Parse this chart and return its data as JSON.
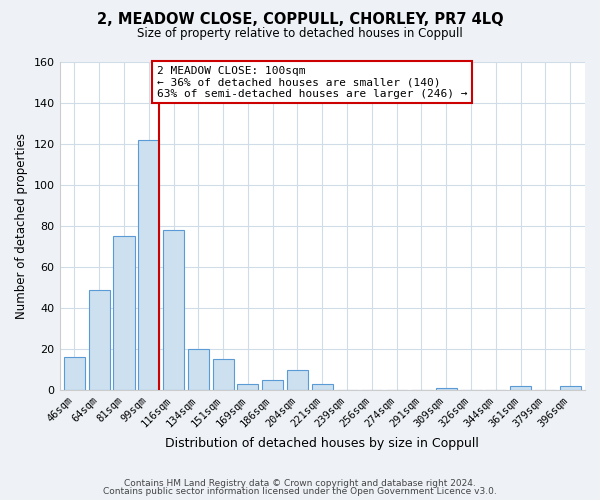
{
  "title": "2, MEADOW CLOSE, COPPULL, CHORLEY, PR7 4LQ",
  "subtitle": "Size of property relative to detached houses in Coppull",
  "xlabel": "Distribution of detached houses by size in Coppull",
  "ylabel": "Number of detached properties",
  "bar_labels": [
    "46sqm",
    "64sqm",
    "81sqm",
    "99sqm",
    "116sqm",
    "134sqm",
    "151sqm",
    "169sqm",
    "186sqm",
    "204sqm",
    "221sqm",
    "239sqm",
    "256sqm",
    "274sqm",
    "291sqm",
    "309sqm",
    "326sqm",
    "344sqm",
    "361sqm",
    "379sqm",
    "396sqm"
  ],
  "bar_values": [
    16,
    49,
    75,
    122,
    78,
    20,
    15,
    3,
    5,
    10,
    3,
    0,
    0,
    0,
    0,
    1,
    0,
    0,
    2,
    0,
    2
  ],
  "bar_color": "#cce0f0",
  "bar_edge_color": "#5b9bd5",
  "ylim": [
    0,
    160
  ],
  "yticks": [
    0,
    20,
    40,
    60,
    80,
    100,
    120,
    140,
    160
  ],
  "marker_bar_index": 3,
  "marker_color": "#cc0000",
  "annotation_title": "2 MEADOW CLOSE: 100sqm",
  "annotation_line1": "← 36% of detached houses are smaller (140)",
  "annotation_line2": "63% of semi-detached houses are larger (246) →",
  "footer_line1": "Contains HM Land Registry data © Crown copyright and database right 2024.",
  "footer_line2": "Contains public sector information licensed under the Open Government Licence v3.0.",
  "background_color": "#eef2f7",
  "plot_bg_color": "#ffffff",
  "grid_color": "#d0dce8"
}
